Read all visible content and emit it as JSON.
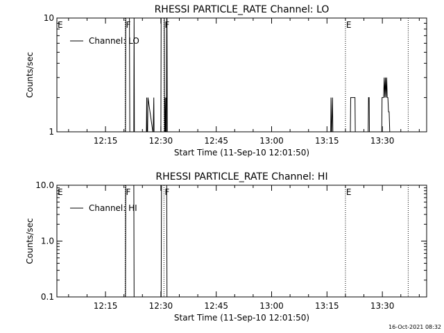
{
  "chart_data": [
    {
      "type": "line",
      "title": "RHESSI PARTICLE_RATE Channel: LO",
      "xlabel": "Start Time (11-Sep-10 12:01:50)",
      "ylabel": "Counts/sec",
      "y_scale": "log",
      "ylim": [
        1,
        10
      ],
      "xlim": [
        "12:01:50",
        "13:42:00"
      ],
      "x_ticks": [
        "12:15",
        "12:30",
        "12:45",
        "13:00",
        "13:15",
        "13:30"
      ],
      "y_ticks": [
        "1",
        "10"
      ],
      "legend": {
        "position": "top-left",
        "label": "Channel: LO"
      },
      "markers": [
        {
          "label": "E",
          "time": "12:01:50",
          "style": "none"
        },
        {
          "label": "F",
          "time": "12:20:20",
          "style": "dotted"
        },
        {
          "label": "F",
          "time": "12:30:50",
          "style": "dotted"
        },
        {
          "label": "E",
          "time": "13:20:00",
          "style": "dotted"
        },
        {
          "label": "",
          "time": "13:37:00",
          "style": "dotted"
        }
      ],
      "series": [
        {
          "name": "Channel: LO",
          "x": [
            "12:20:25",
            "12:20:30",
            "12:21:30",
            "12:21:35",
            "12:22:40",
            "12:22:45",
            "12:22:50",
            "12:26:05",
            "12:26:10",
            "12:26:15",
            "12:26:25",
            "12:26:30",
            "12:27:50",
            "12:27:55",
            "12:28:05",
            "12:28:10",
            "12:30:00",
            "12:30:05",
            "12:30:55",
            "12:31:00",
            "12:31:05",
            "12:31:10",
            "12:31:15",
            "12:31:20",
            "12:31:25",
            "12:31:30",
            "12:31:35",
            "12:31:40",
            "12:31:45",
            "13:16:00",
            "13:16:05",
            "13:16:10",
            "13:16:15",
            "13:16:30",
            "13:16:35",
            "13:21:20",
            "13:21:25",
            "13:21:40",
            "13:22:35",
            "13:22:40",
            "13:22:45",
            "13:23:25",
            "13:23:30",
            "13:26:10",
            "13:26:15",
            "13:26:25",
            "13:26:30",
            "13:26:35",
            "13:29:50",
            "13:29:55",
            "13:30:20",
            "13:30:30",
            "13:30:40",
            "13:30:50",
            "13:31:00",
            "13:31:10",
            "13:31:20",
            "13:31:30",
            "13:31:40",
            "13:31:50",
            "13:32:00",
            "13:32:10"
          ],
          "y": [
            1,
            10,
            10,
            1,
            1,
            10,
            1,
            1,
            2,
            1,
            1,
            2,
            1,
            1,
            2,
            1,
            1,
            10,
            10,
            1,
            2,
            1,
            1,
            2,
            1,
            1,
            10,
            10,
            1,
            1,
            2,
            1,
            1,
            2,
            1,
            1,
            2,
            2,
            2,
            1,
            1,
            1,
            1,
            1,
            2,
            2,
            1,
            1,
            1,
            2,
            2,
            3,
            2,
            3,
            2,
            3,
            2,
            2,
            1.5,
            1.5,
            1,
            1
          ]
        }
      ]
    },
    {
      "type": "line",
      "title": "RHESSI PARTICLE_RATE Channel: HI",
      "xlabel": "Start Time (11-Sep-10 12:01:50)",
      "ylabel": "Counts/sec",
      "y_scale": "log",
      "ylim": [
        0.1,
        10
      ],
      "xlim": [
        "12:01:50",
        "13:42:00"
      ],
      "x_ticks": [
        "12:15",
        "12:30",
        "12:45",
        "13:00",
        "13:15",
        "13:30"
      ],
      "y_ticks": [
        "0.1",
        "1.0",
        "10.0"
      ],
      "legend": {
        "position": "top-left",
        "label": "Channel: HI"
      },
      "markers": [
        {
          "label": "E",
          "time": "12:01:50",
          "style": "none"
        },
        {
          "label": "F",
          "time": "12:20:20",
          "style": "dotted"
        },
        {
          "label": "F",
          "time": "12:30:50",
          "style": "dotted"
        },
        {
          "label": "E",
          "time": "13:20:00",
          "style": "dotted"
        },
        {
          "label": "",
          "time": "13:37:00",
          "style": "dotted"
        }
      ],
      "series": [
        {
          "name": "Channel: HI",
          "x": [
            "12:20:25",
            "12:20:30",
            "12:22:40",
            "12:22:45",
            "12:30:05",
            "12:30:10",
            "12:31:35",
            "12:31:40"
          ],
          "y": [
            0.1,
            10,
            10,
            0.1,
            0.1,
            10,
            10,
            0.1
          ]
        }
      ]
    }
  ],
  "footer": {
    "timestamp": "16-Oct-2021 08:32"
  }
}
